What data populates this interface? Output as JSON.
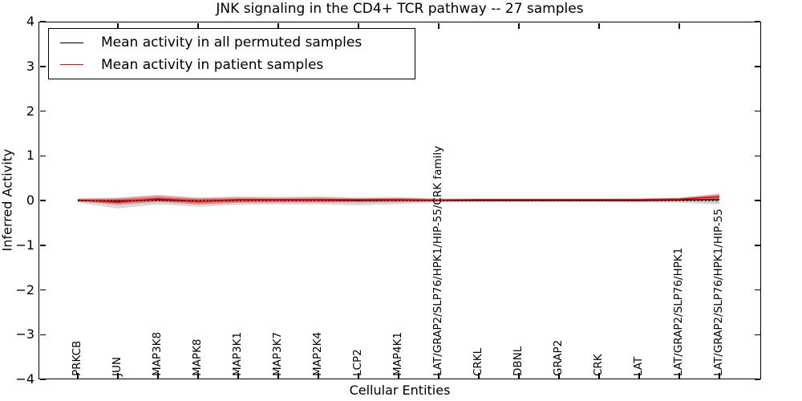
{
  "figure": {
    "title": "JNK signaling in the CD4+ TCR pathway -- 27 samples"
  },
  "legend": {
    "items": [
      {
        "label": "Mean activity in all permuted samples",
        "color": "#000000"
      },
      {
        "label": "Mean activity in patient samples",
        "color": "#ff0000"
      }
    ]
  },
  "chart_data": {
    "type": "line",
    "title": "JNK signaling in the CD4+ TCR pathway -- 27 samples",
    "xlabel": "Cellular Entities",
    "ylabel": "Inferred Activity",
    "ylim": [
      -4,
      4
    ],
    "ytick_labels": [
      "4",
      "3",
      "2",
      "1",
      "0",
      "−1",
      "−2",
      "−3",
      "−4"
    ],
    "grid": false,
    "legend_position": "upper left",
    "zero_reference_line": {
      "style": "dotted",
      "color": "#000000",
      "value": 0
    },
    "categories": [
      "PRKCB",
      "JUN",
      "MAP3K8",
      "MAPK8",
      "MAP3K1",
      "MAP3K7",
      "MAP2K4",
      "LCP2",
      "MAP4K1",
      "LAT/GRAP2/SLP76/HPK1/HIP-55/CRK family",
      "CRKL",
      "DBNL",
      "GRAP2",
      "CRK",
      "LAT",
      "LAT/GRAP2/SLP76/HPK1",
      "LAT/GRAP2/SLP76/HPK1/HIP-55"
    ],
    "series": [
      {
        "name": "Mean activity in all permuted samples",
        "color": "#000000",
        "values": [
          0.0,
          -0.02,
          0.02,
          -0.02,
          0.01,
          0.01,
          0.01,
          0.0,
          0.01,
          0.0,
          0.0,
          0.0,
          0.0,
          0.0,
          0.0,
          0.01,
          0.02
        ]
      },
      {
        "name": "Mean activity in patient samples",
        "color": "#ff0000",
        "values": [
          0.01,
          -0.04,
          0.04,
          -0.02,
          0.02,
          0.02,
          0.02,
          0.02,
          0.02,
          0.01,
          0.02,
          0.02,
          0.02,
          0.02,
          0.02,
          0.03,
          0.09
        ]
      }
    ],
    "bands": [
      {
        "name": "permuted samples confidence band",
        "color": "#9e9e9e",
        "opacity": 0.38,
        "upper": [
          0.05,
          0.07,
          0.13,
          0.07,
          0.09,
          0.08,
          0.09,
          0.07,
          0.08,
          0.04,
          0.04,
          0.04,
          0.04,
          0.04,
          0.05,
          0.06,
          0.16
        ],
        "lower": [
          -0.05,
          -0.18,
          -0.09,
          -0.14,
          -0.1,
          -0.09,
          -0.09,
          -0.11,
          -0.08,
          -0.04,
          -0.03,
          -0.03,
          -0.03,
          -0.03,
          -0.04,
          -0.05,
          -0.09
        ]
      },
      {
        "name": "patient samples confidence band",
        "color": "#ff0000",
        "opacity": 0.3,
        "upper": [
          0.04,
          0.05,
          0.11,
          0.05,
          0.07,
          0.06,
          0.07,
          0.05,
          0.06,
          0.04,
          0.04,
          0.04,
          0.04,
          0.04,
          0.04,
          0.06,
          0.14
        ],
        "lower": [
          -0.02,
          -0.09,
          -0.02,
          -0.09,
          -0.05,
          -0.04,
          -0.04,
          -0.03,
          -0.03,
          -0.02,
          -0.02,
          -0.02,
          -0.02,
          -0.02,
          -0.02,
          -0.01,
          0.04
        ]
      }
    ]
  }
}
